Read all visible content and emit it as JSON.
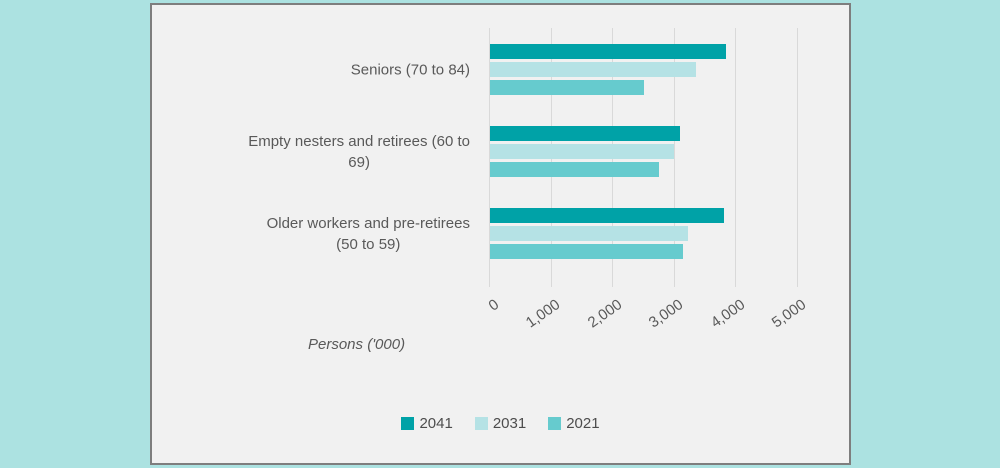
{
  "chart_data": {
    "type": "bar",
    "orientation": "horizontal",
    "categories": [
      "Seniors (70 to 84)",
      "Empty nesters and retirees (60 to\n69)",
      "Older workers and pre-retirees\n(50 to 59)"
    ],
    "series": [
      {
        "name": "2041",
        "color": "#00A2A7",
        "values": [
          3830,
          3080,
          3800
        ]
      },
      {
        "name": "2031",
        "color": "#B5E2E5",
        "values": [
          3350,
          2990,
          3210
        ]
      },
      {
        "name": "2021",
        "color": "#66CBCE",
        "values": [
          2500,
          2740,
          3130
        ]
      }
    ],
    "xlabel": "Persons ('000)",
    "x_ticks": [
      "0",
      "1,000",
      "2,000",
      "3,000",
      "4,000",
      "5,000"
    ],
    "xlim": [
      0,
      5000
    ],
    "grid": "vertical",
    "legend_position": "bottom"
  },
  "colors": {
    "page_background": "#ACE2E1",
    "panel_background": "#F1F1F1",
    "panel_border": "#7E7E7E",
    "gridline": "#D9D9D9",
    "text": "#595959"
  }
}
